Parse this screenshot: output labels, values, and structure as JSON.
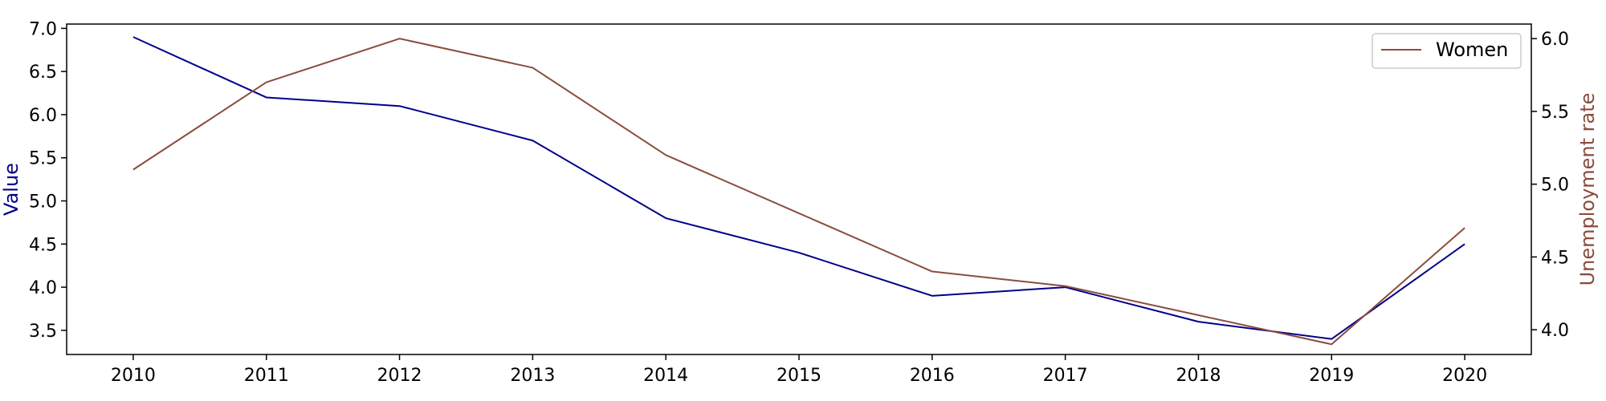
{
  "chart_data": {
    "type": "line",
    "x": [
      2010,
      2011,
      2012,
      2013,
      2014,
      2015,
      2016,
      2017,
      2018,
      2019,
      2020
    ],
    "xlim": [
      2009.5,
      2020.5
    ],
    "xticks": [
      "2010",
      "2011",
      "2012",
      "2013",
      "2014",
      "2015",
      "2016",
      "2017",
      "2018",
      "2019",
      "2020"
    ],
    "grid": false,
    "legend_position": "top-right",
    "left_axis": {
      "label": "Value",
      "color": "#00008b",
      "ylim": [
        3.22,
        7.05
      ],
      "ticks": [
        "3.5",
        "4.0",
        "4.5",
        "5.0",
        "5.5",
        "6.0",
        "6.5",
        "7.0"
      ]
    },
    "right_axis": {
      "label": "Unemployment rate",
      "color": "#8b4c3e",
      "ylim": [
        3.83,
        6.1
      ],
      "ticks": [
        "4.0",
        "4.5",
        "5.0",
        "5.5",
        "6.0"
      ]
    },
    "series": [
      {
        "axis": "left",
        "color": "#00008b",
        "values": [
          6.9,
          6.2,
          6.1,
          5.7,
          4.8,
          4.4,
          3.9,
          4.0,
          3.6,
          3.4,
          4.5
        ]
      },
      {
        "name": "Women",
        "axis": "right",
        "color": "#8b4c3e",
        "values": [
          5.1,
          5.7,
          6.0,
          5.8,
          5.2,
          4.8,
          4.4,
          4.3,
          4.1,
          3.9,
          4.7
        ]
      }
    ]
  }
}
